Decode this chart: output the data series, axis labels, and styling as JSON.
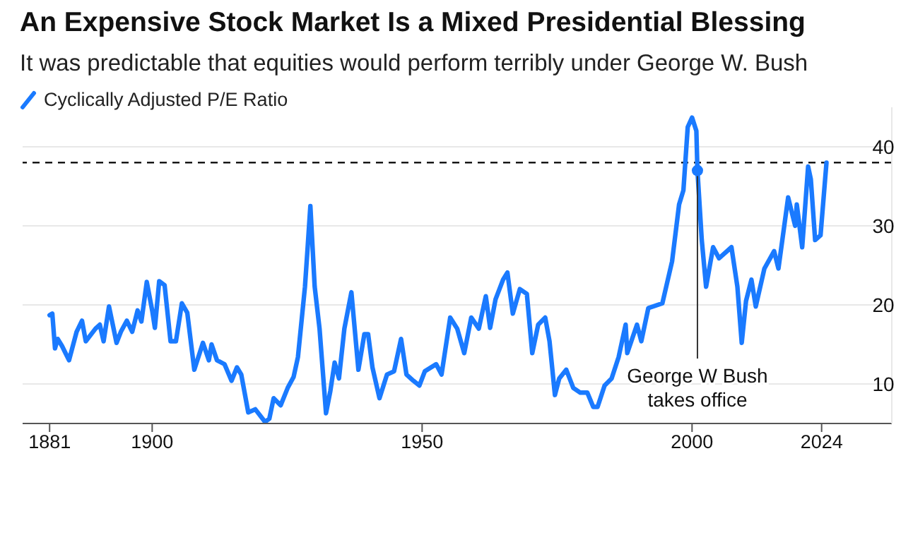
{
  "chart_data": {
    "type": "line",
    "title": "An Expensive Stock Market Is a Mixed Presidential Blessing",
    "subtitle": "It was predictable that equities would perform terribly under George W. Bush",
    "series": [
      {
        "name": "Cyclically Adjusted P/E Ratio",
        "color": "#1a7aff",
        "x": [
          1881,
          1881.5,
          1882,
          1882.5,
          1883.3,
          1884.6,
          1886,
          1887,
          1887.7,
          1889.5,
          1890.3,
          1891,
          1892,
          1893.4,
          1894.2,
          1895.3,
          1896.3,
          1897.3,
          1898,
          1899,
          1900,
          1900.5,
          1901.3,
          1902.3,
          1903.4,
          1904.4,
          1905.5,
          1906.5,
          1907.8,
          1909.4,
          1910.5,
          1911,
          1912,
          1913.4,
          1914.7,
          1915.7,
          1916.5,
          1917.8,
          1919.1,
          1920.9,
          1921.7,
          1922.5,
          1923.8,
          1925.1,
          1926.2,
          1927,
          1928.3,
          1928.8,
          1929.3,
          1930.1,
          1931,
          1932.2,
          1933,
          1933.8,
          1934.6,
          1935.6,
          1936.9,
          1938.2,
          1939.3,
          1940,
          1940.8,
          1942.1,
          1943.5,
          1944.8,
          1946.1,
          1947.1,
          1948.4,
          1949.5,
          1950.5,
          1952.6,
          1953.6,
          1955.2,
          1956.5,
          1957.8,
          1959.1,
          1960.5,
          1961.8,
          1962.6,
          1963.6,
          1965,
          1965.8,
          1966.8,
          1968.1,
          1969.4,
          1970.4,
          1971.5,
          1972.8,
          1973.6,
          1974.6,
          1975.4,
          1976.7,
          1978,
          1979.3,
          1980.6,
          1981.7,
          1982.5,
          1983.8,
          1985.1,
          1986.4,
          1987.7,
          1988,
          1989.8,
          1990.6,
          1991.9,
          1994.5,
          1996.3,
          1997.6,
          1998.4,
          1999.2,
          2000,
          2000.8,
          2001,
          2001.8,
          2002.6,
          2003.9,
          2005,
          2007.3,
          2008.4,
          2009.2,
          2010,
          2011,
          2011.8,
          2013.4,
          2015.2,
          2016,
          2017.8,
          2019.1,
          2019.4,
          2020.4,
          2021.5,
          2022,
          2022.8,
          2023.8,
          2024.9
        ],
        "values": [
          18.7,
          18.9,
          14.5,
          15.7,
          14.8,
          13,
          16.6,
          18,
          15.4,
          17,
          17.5,
          15.4,
          19.8,
          15.2,
          16.6,
          18,
          16.6,
          19.3,
          17.9,
          22.9,
          19.3,
          17.1,
          23,
          22.5,
          15.4,
          15.4,
          20.2,
          19,
          11.8,
          15.2,
          13,
          15,
          13,
          12.5,
          10.4,
          12.1,
          11.2,
          6.4,
          6.8,
          5.2,
          5.6,
          8.2,
          7.3,
          9.5,
          10.9,
          13.4,
          22.3,
          27.3,
          32.5,
          22.3,
          17,
          6.3,
          9.1,
          12.7,
          10.7,
          17,
          21.6,
          11.8,
          16.3,
          16.3,
          12.1,
          8.2,
          11.2,
          11.6,
          15.7,
          11.2,
          10.4,
          9.8,
          11.6,
          12.5,
          11.2,
          18.4,
          17,
          13.9,
          18.4,
          17,
          21.1,
          17.1,
          20.7,
          23.2,
          24.1,
          18.9,
          22,
          21.4,
          13.9,
          17.5,
          18.4,
          15.4,
          8.6,
          10.7,
          11.8,
          9.5,
          8.9,
          8.9,
          7.1,
          7.1,
          9.8,
          10.7,
          13.4,
          17.5,
          13.9,
          17.5,
          15.4,
          19.6,
          20.2,
          25.5,
          32.7,
          34.5,
          42.5,
          43.7,
          42,
          37,
          28.2,
          22.3,
          27.3,
          25.9,
          27.3,
          22.3,
          15.2,
          20.5,
          23.2,
          19.8,
          24.6,
          26.8,
          24.6,
          33.6,
          30,
          32.7,
          27.3,
          37.5,
          35.9,
          28.2,
          28.8,
          38
        ]
      }
    ],
    "xlim": [
      1876,
      2037
    ],
    "xticks": [
      1881,
      1900,
      1950,
      2000,
      2024
    ],
    "ylim": [
      5,
      45
    ],
    "yticks": [
      10,
      20,
      30,
      40
    ],
    "ref_lines": [
      {
        "axis": "y",
        "value": 38,
        "color": "#000000",
        "line_style": "dashed"
      }
    ],
    "annotations": [
      {
        "text": "George W Bush takes office",
        "x": 2001,
        "y": 37
      }
    ],
    "grid": "y",
    "legend": "top left",
    "marker": "none",
    "line_style": "solid"
  }
}
